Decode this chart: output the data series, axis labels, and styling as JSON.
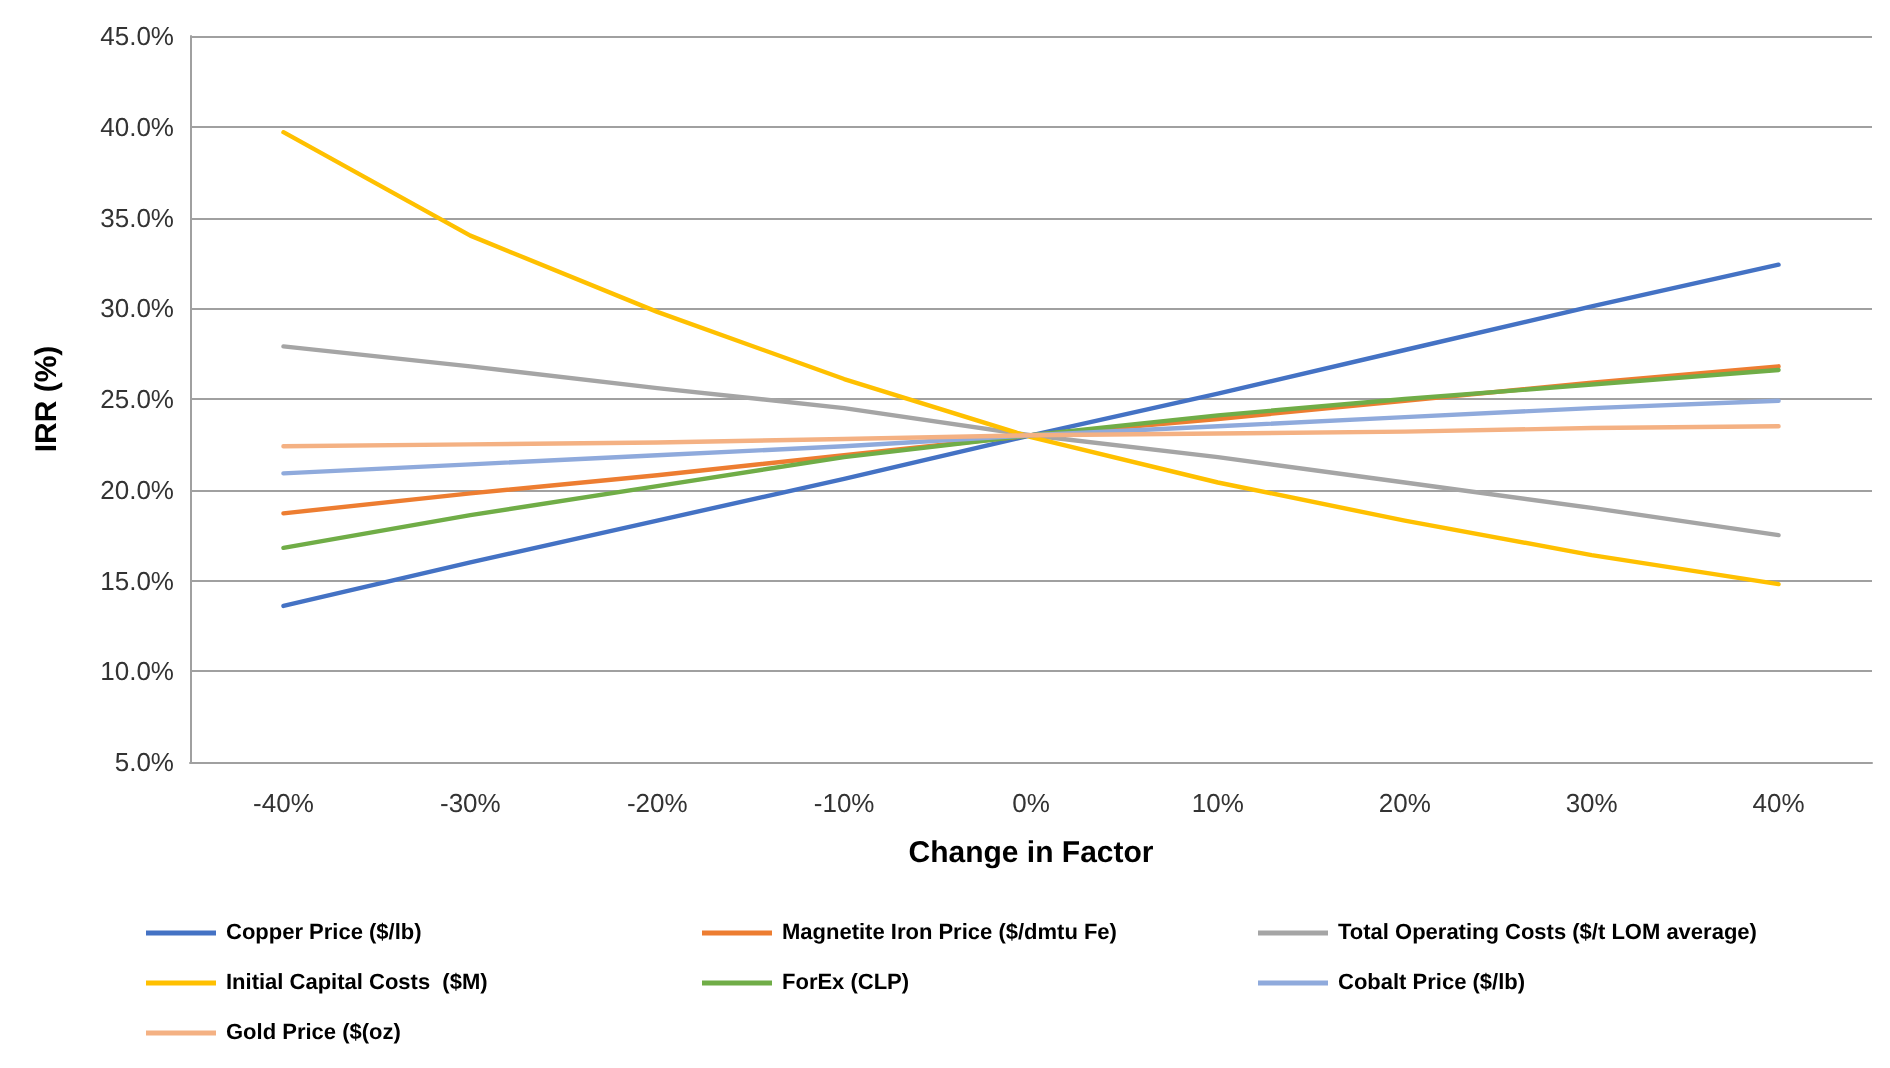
{
  "chart_data": {
    "type": "line",
    "xlabel": "Change in Factor",
    "ylabel": "IRR (%)",
    "categories": [
      "-40%",
      "-30%",
      "-20%",
      "-10%",
      "0%",
      "10%",
      "20%",
      "30%",
      "40%"
    ],
    "ylim": [
      5,
      45
    ],
    "yticks": [
      {
        "value": 5,
        "label": "5.0%"
      },
      {
        "value": 10,
        "label": "10.0%"
      },
      {
        "value": 15,
        "label": "15.0%"
      },
      {
        "value": 20,
        "label": "20.0%"
      },
      {
        "value": 25,
        "label": "25.0%"
      },
      {
        "value": 30,
        "label": "30.0%"
      },
      {
        "value": 35,
        "label": "35.0%"
      },
      {
        "value": 40,
        "label": "40.0%"
      },
      {
        "value": 45,
        "label": "45.0%"
      }
    ],
    "grid": "y",
    "legend": "bottom",
    "marker": "none",
    "line_style": "solid",
    "series": [
      {
        "name": "Copper Price ($/lb)",
        "color": "#4472c4",
        "values": [
          13.6,
          16.0,
          18.3,
          20.6,
          23.0,
          25.3,
          27.7,
          30.1,
          32.4
        ]
      },
      {
        "name": "Magnetite Iron Price ($/dmtu Fe)",
        "color": "#ed7d31",
        "values": [
          18.7,
          19.8,
          20.8,
          21.9,
          23.0,
          23.9,
          24.9,
          25.9,
          26.8
        ]
      },
      {
        "name": "Total Operating Costs ($/t LOM average)",
        "color": "#a5a5a5",
        "values": [
          27.9,
          26.8,
          25.6,
          24.5,
          23.0,
          21.8,
          20.4,
          19.0,
          17.5
        ]
      },
      {
        "name": "Initial Capital Costs  ($M)",
        "color": "#ffc000",
        "values": [
          39.7,
          34.0,
          29.8,
          26.1,
          22.9,
          20.4,
          18.3,
          16.4,
          14.8
        ]
      },
      {
        "name": "ForEx (CLP)",
        "color": "#70ad47",
        "values": [
          16.8,
          18.6,
          20.2,
          21.8,
          23.0,
          24.1,
          25.0,
          25.8,
          26.6
        ]
      },
      {
        "name": "Cobalt Price ($/lb)",
        "color": "#8faadc",
        "values": [
          20.9,
          21.4,
          21.9,
          22.4,
          23.0,
          23.5,
          24.0,
          24.5,
          24.9
        ]
      },
      {
        "name": "Gold Price ($(oz)",
        "color": "#f4b183",
        "values": [
          22.4,
          22.5,
          22.6,
          22.8,
          23.0,
          23.1,
          23.2,
          23.4,
          23.5
        ]
      }
    ]
  }
}
